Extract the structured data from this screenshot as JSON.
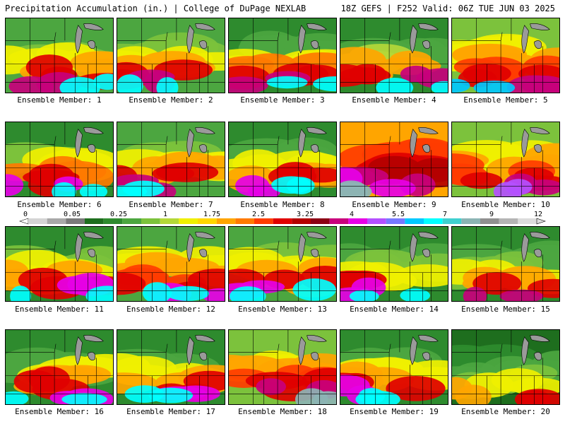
{
  "header": {
    "title": "Precipitation Accumulation (in.) | College of DuPage NEXLAB",
    "valid": "18Z GEFS | F252 Valid: 06Z TUE JUN 03 2025"
  },
  "colorbar": {
    "labels": [
      "0",
      "0.05",
      "0.25",
      "1",
      "1.75",
      "2.5",
      "3.25",
      "4",
      "5.5",
      "7",
      "9",
      "12"
    ],
    "colors": [
      "#d4d4d4",
      "#a8a8a8",
      "#7a7a7a",
      "#1e6e1e",
      "#2e8b2e",
      "#4ca640",
      "#7cc23c",
      "#b4d838",
      "#f0f000",
      "#ffd700",
      "#ffa500",
      "#ff7a00",
      "#ff3c00",
      "#e00000",
      "#b40000",
      "#8c0014",
      "#c8007c",
      "#e600e6",
      "#b450ff",
      "#7878ff",
      "#00c8ff",
      "#00ffff",
      "#40d0d0",
      "#8cb4b4",
      "#909090",
      "#b4b4b4",
      "#dcdcdc"
    ]
  },
  "members": [
    {
      "label": "Ensemble Member: 1",
      "palette": [
        "#4ca640",
        "#7cc23c",
        "#f0f000",
        "#ffa500",
        "#e00000",
        "#c8007c",
        "#00ffff"
      ]
    },
    {
      "label": "Ensemble Member: 2",
      "palette": [
        "#4ca640",
        "#7cc23c",
        "#f0f000",
        "#ffa500",
        "#e00000",
        "#c8007c",
        "#00ffff"
      ]
    },
    {
      "label": "Ensemble Member: 3",
      "palette": [
        "#2e8b2e",
        "#4ca640",
        "#f0f000",
        "#ff7a00",
        "#e00000",
        "#c8007c",
        "#00ffff"
      ]
    },
    {
      "label": "Ensemble Member: 4",
      "palette": [
        "#2e8b2e",
        "#4ca640",
        "#b4d838",
        "#ffa500",
        "#e00000",
        "#c8007c",
        "#00ffff"
      ]
    },
    {
      "label": "Ensemble Member: 5",
      "palette": [
        "#7cc23c",
        "#f0f000",
        "#ffa500",
        "#ff3c00",
        "#e00000",
        "#c8007c",
        "#00c8ff"
      ]
    },
    {
      "label": "Ensemble Member: 6",
      "palette": [
        "#2e8b2e",
        "#7cc23c",
        "#f0f000",
        "#ff7a00",
        "#e00000",
        "#e600e6",
        "#00ffff"
      ]
    },
    {
      "label": "Ensemble Member: 7",
      "palette": [
        "#4ca640",
        "#7cc23c",
        "#f0f000",
        "#ffa500",
        "#e00000",
        "#c8007c",
        "#00ffff"
      ]
    },
    {
      "label": "Ensemble Member: 8",
      "palette": [
        "#2e8b2e",
        "#4ca640",
        "#f0f000",
        "#ffa500",
        "#e00000",
        "#e600e6",
        "#00ffff"
      ]
    },
    {
      "label": "Ensemble Member: 9",
      "palette": [
        "#ffa500",
        "#ff3c00",
        "#e00000",
        "#b40000",
        "#c8007c",
        "#e600e6",
        "#8cb4b4"
      ]
    },
    {
      "label": "Ensemble Member: 10",
      "palette": [
        "#7cc23c",
        "#f0f000",
        "#ffa500",
        "#ff3c00",
        "#e00000",
        "#c8007c",
        "#b450ff"
      ]
    },
    {
      "label": "Ensemble Member: 11",
      "palette": [
        "#2e8b2e",
        "#7cc23c",
        "#f0f000",
        "#ffa500",
        "#e00000",
        "#e600e6",
        "#00ffff"
      ]
    },
    {
      "label": "Ensemble Member: 12",
      "palette": [
        "#4ca640",
        "#f0f000",
        "#ffa500",
        "#ff3c00",
        "#e00000",
        "#e600e6",
        "#00ffff"
      ]
    },
    {
      "label": "Ensemble Member: 13",
      "palette": [
        "#4ca640",
        "#7cc23c",
        "#f0f000",
        "#ffa500",
        "#e00000",
        "#e600e6",
        "#00ffff"
      ]
    },
    {
      "label": "Ensemble Member: 14",
      "palette": [
        "#2e8b2e",
        "#4ca640",
        "#7cc23c",
        "#f0f000",
        "#e00000",
        "#e600e6",
        "#00ffff"
      ]
    },
    {
      "label": "Ensemble Member: 15",
      "palette": [
        "#2e8b2e",
        "#4ca640",
        "#7cc23c",
        "#f0f000",
        "#ffa500",
        "#e00000",
        "#c8007c"
      ]
    },
    {
      "label": "Ensemble Member: 16",
      "palette": [
        "#2e8b2e",
        "#4ca640",
        "#f0f000",
        "#ffa500",
        "#e00000",
        "#e600e6",
        "#00ffff"
      ]
    },
    {
      "label": "Ensemble Member: 17",
      "palette": [
        "#2e8b2e",
        "#4ca640",
        "#f0f000",
        "#ffa500",
        "#e00000",
        "#e600e6",
        "#00ffff"
      ]
    },
    {
      "label": "Ensemble Member: 18",
      "palette": [
        "#7cc23c",
        "#f0f000",
        "#ffa500",
        "#ff3c00",
        "#e00000",
        "#c8007c",
        "#8cb4b4"
      ]
    },
    {
      "label": "Ensemble Member: 19",
      "palette": [
        "#2e8b2e",
        "#4ca640",
        "#f0f000",
        "#ffa500",
        "#e00000",
        "#e600e6",
        "#00ffff"
      ]
    },
    {
      "label": "Ensemble Member: 20",
      "palette": [
        "#1e6e1e",
        "#2e8b2e",
        "#4ca640",
        "#7cc23c",
        "#f0f000",
        "#ffa500",
        "#e00000"
      ]
    }
  ]
}
